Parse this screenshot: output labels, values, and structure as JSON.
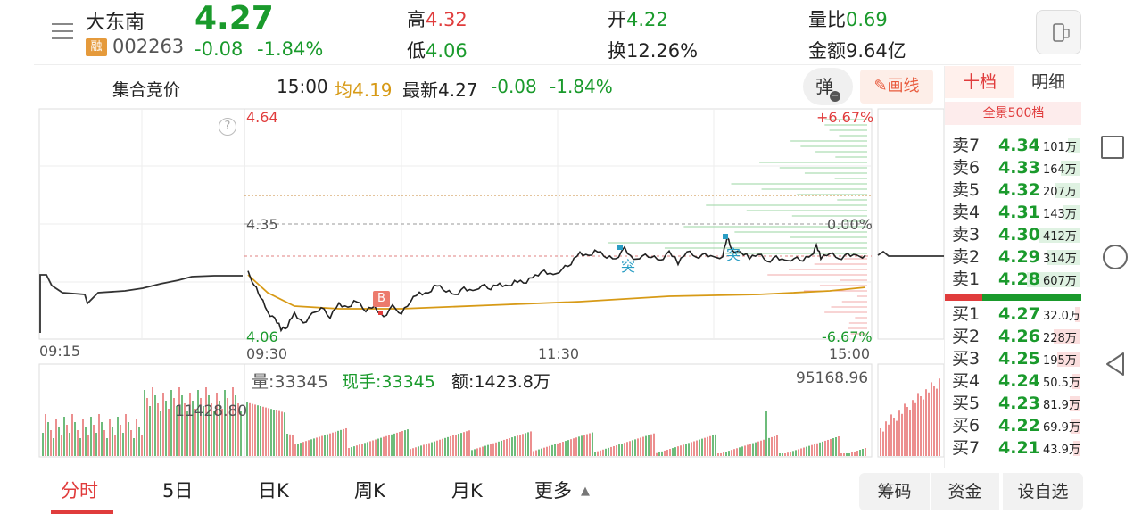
{
  "stock": {
    "name": "大东南",
    "rong": "融",
    "code": "002263",
    "price": "4.27",
    "change": "-0.08",
    "change_pct": "-1.84%",
    "high_label": "高",
    "high": "4.32",
    "low_label": "低",
    "low": "4.06",
    "open_label": "开",
    "open": "4.22",
    "turnover_label": "换",
    "turnover": "12.26%",
    "vol_ratio_label": "量比",
    "vol_ratio": "0.69",
    "amount_label": "金额",
    "amount": "9.64亿"
  },
  "infobar": {
    "auction": "集合竞价",
    "time": "15:00",
    "avg_label": "均",
    "avg": "4.19",
    "latest_label": "最新",
    "latest": "4.27",
    "change": "-0.08",
    "change_pct": "-1.84%",
    "popup_btn": "弹",
    "draw_btn": "画线"
  },
  "chart_labels": {
    "y_top": "4.64",
    "y_mid": "4.35",
    "y_bot": "4.06",
    "pct_top": "+6.67%",
    "pct_mid": "0.00%",
    "pct_bot": "-6.67%",
    "t_pre": "09:15",
    "t_open": "09:30",
    "t_mid": "11:30",
    "t_close": "15:00",
    "help": "?",
    "buy_marker": "B",
    "tu1": "突",
    "tu2": "突"
  },
  "volume": {
    "vol_label": "量:33345",
    "hand_label": "现手:33345",
    "amt_label": "额:1423.8万",
    "max_right": "95168.96",
    "max_left": "11428.80"
  },
  "orderbook": {
    "tab_ten": "十档",
    "tab_detail": "明细",
    "full500": "全景500档",
    "sells": [
      {
        "label": "卖7",
        "price": "4.34",
        "vol": "101万",
        "w": 14
      },
      {
        "label": "卖6",
        "price": "4.33",
        "vol": "164万",
        "w": 22
      },
      {
        "label": "卖5",
        "price": "4.32",
        "vol": "207万",
        "w": 28
      },
      {
        "label": "卖4",
        "price": "4.31",
        "vol": "143万",
        "w": 19
      },
      {
        "label": "卖3",
        "price": "4.30",
        "vol": "412万",
        "w": 46
      },
      {
        "label": "卖2",
        "price": "4.29",
        "vol": "314万",
        "w": 38
      },
      {
        "label": "卖1",
        "price": "4.28",
        "vol": "607万",
        "w": 60
      }
    ],
    "buys": [
      {
        "label": "买1",
        "price": "4.27",
        "vol": "32.0万",
        "w": 6
      },
      {
        "label": "买2",
        "price": "4.26",
        "vol": "228万",
        "w": 30
      },
      {
        "label": "买3",
        "price": "4.25",
        "vol": "195万",
        "w": 26
      },
      {
        "label": "买4",
        "price": "4.24",
        "vol": "50.5万",
        "w": 9
      },
      {
        "label": "买5",
        "price": "4.23",
        "vol": "81.9万",
        "w": 12
      },
      {
        "label": "买6",
        "price": "4.22",
        "vol": "69.9万",
        "w": 11
      },
      {
        "label": "买7",
        "price": "4.21",
        "vol": "43.9万",
        "w": 8
      }
    ]
  },
  "bottom_tabs": [
    "分时",
    "5日",
    "日K",
    "周K",
    "月K",
    "更多"
  ],
  "bottom_buttons": {
    "chips": "筹码",
    "funds": "资金",
    "watch": "设自选"
  },
  "colors": {
    "up": "#e03c3c",
    "down": "#1a9a2c",
    "avg_line": "#d79a16",
    "accent": "#e03c3c"
  }
}
